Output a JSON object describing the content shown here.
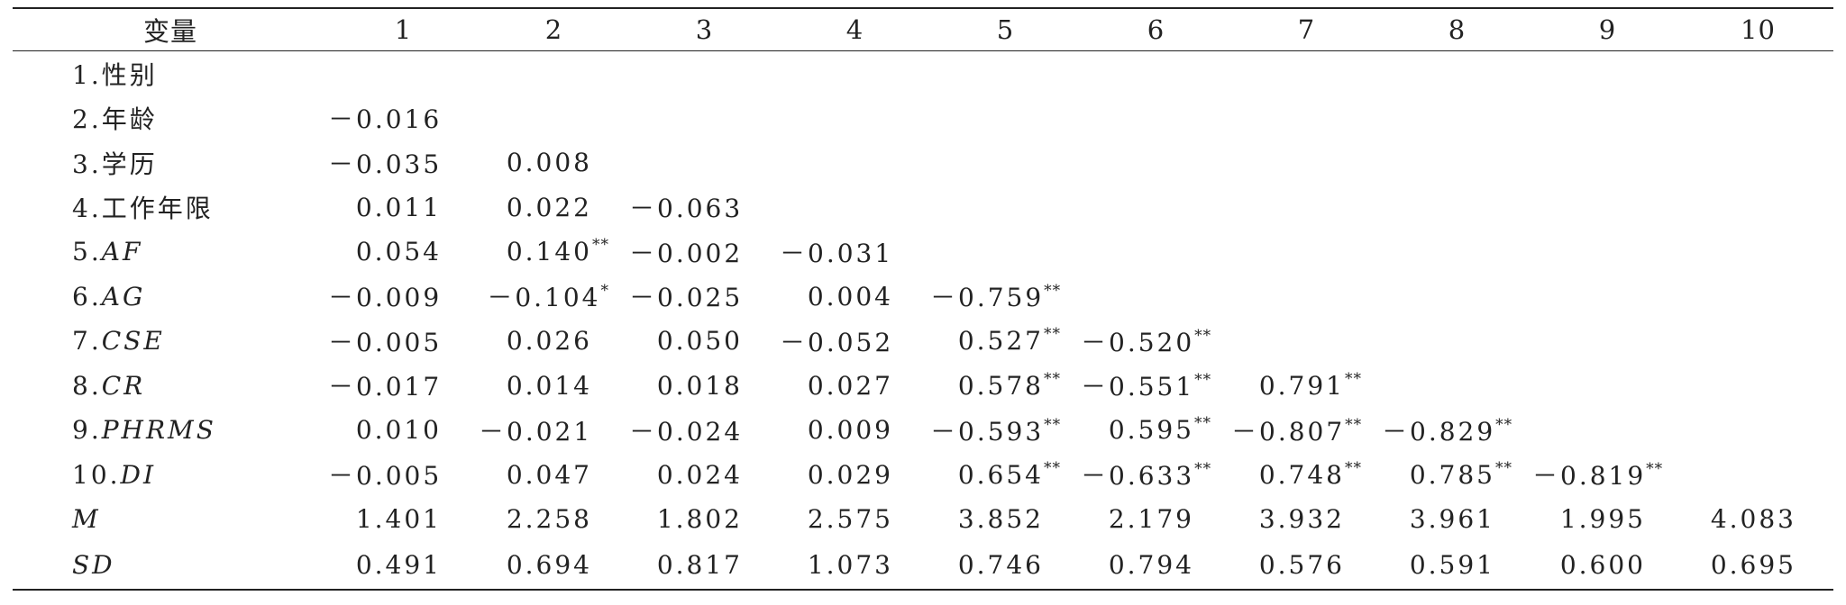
{
  "table": {
    "headers": [
      "变量",
      "1",
      "2",
      "3",
      "4",
      "5",
      "6",
      "7",
      "8",
      "9",
      "10"
    ],
    "rows": [
      {
        "label": "1.性别",
        "italic": false,
        "cells": []
      },
      {
        "label": "2.年龄",
        "italic": false,
        "cells": [
          {
            "v": "－0.016",
            "s": ""
          }
        ]
      },
      {
        "label": "3.学历",
        "italic": false,
        "cells": [
          {
            "v": "－0.035",
            "s": ""
          },
          {
            "v": "0.008",
            "s": ""
          }
        ]
      },
      {
        "label": "4.工作年限",
        "italic": false,
        "cells": [
          {
            "v": "0.011",
            "s": ""
          },
          {
            "v": "0.022",
            "s": ""
          },
          {
            "v": "－0.063",
            "s": ""
          }
        ]
      },
      {
        "label_prefix": "5.",
        "label_var": "AF",
        "cells": [
          {
            "v": "0.054",
            "s": ""
          },
          {
            "v": "0.140",
            "s": "**"
          },
          {
            "v": "－0.002",
            "s": ""
          },
          {
            "v": "－0.031",
            "s": ""
          }
        ]
      },
      {
        "label_prefix": "6.",
        "label_var": "AG",
        "cells": [
          {
            "v": "－0.009",
            "s": ""
          },
          {
            "v": "－0.104",
            "s": "*"
          },
          {
            "v": "－0.025",
            "s": ""
          },
          {
            "v": "0.004",
            "s": ""
          },
          {
            "v": "－0.759",
            "s": "**"
          }
        ]
      },
      {
        "label_prefix": "7.",
        "label_var": "CSE",
        "cells": [
          {
            "v": "－0.005",
            "s": ""
          },
          {
            "v": "0.026",
            "s": ""
          },
          {
            "v": "0.050",
            "s": ""
          },
          {
            "v": "－0.052",
            "s": ""
          },
          {
            "v": "0.527",
            "s": "**"
          },
          {
            "v": "－0.520",
            "s": "**"
          }
        ]
      },
      {
        "label_prefix": "8.",
        "label_var": "CR",
        "cells": [
          {
            "v": "－0.017",
            "s": ""
          },
          {
            "v": "0.014",
            "s": ""
          },
          {
            "v": "0.018",
            "s": ""
          },
          {
            "v": "0.027",
            "s": ""
          },
          {
            "v": "0.578",
            "s": "**"
          },
          {
            "v": "－0.551",
            "s": "**"
          },
          {
            "v": "0.791",
            "s": "**"
          }
        ]
      },
      {
        "label_prefix": "9.",
        "label_var": "PHRMS",
        "cells": [
          {
            "v": "0.010",
            "s": ""
          },
          {
            "v": "－0.021",
            "s": ""
          },
          {
            "v": "－0.024",
            "s": ""
          },
          {
            "v": "0.009",
            "s": ""
          },
          {
            "v": "－0.593",
            "s": "**"
          },
          {
            "v": "0.595",
            "s": "**"
          },
          {
            "v": "－0.807",
            "s": "**"
          },
          {
            "v": "－0.829",
            "s": "**"
          }
        ]
      },
      {
        "label_prefix": "10.",
        "label_var": "DI",
        "cells": [
          {
            "v": "－0.005",
            "s": ""
          },
          {
            "v": "0.047",
            "s": ""
          },
          {
            "v": "0.024",
            "s": ""
          },
          {
            "v": "0.029",
            "s": ""
          },
          {
            "v": "0.654",
            "s": "**"
          },
          {
            "v": "－0.633",
            "s": "**"
          },
          {
            "v": "0.748",
            "s": "**"
          },
          {
            "v": "0.785",
            "s": "**"
          },
          {
            "v": "－0.819",
            "s": "**"
          }
        ]
      },
      {
        "label_var": "M",
        "cells": [
          {
            "v": "1.401",
            "s": ""
          },
          {
            "v": "2.258",
            "s": ""
          },
          {
            "v": "1.802",
            "s": ""
          },
          {
            "v": "2.575",
            "s": ""
          },
          {
            "v": "3.852",
            "s": ""
          },
          {
            "v": "2.179",
            "s": ""
          },
          {
            "v": "3.932",
            "s": ""
          },
          {
            "v": "3.961",
            "s": ""
          },
          {
            "v": "1.995",
            "s": ""
          },
          {
            "v": "4.083",
            "s": ""
          }
        ]
      },
      {
        "label_var": "SD",
        "cells": [
          {
            "v": "0.491",
            "s": ""
          },
          {
            "v": "0.694",
            "s": ""
          },
          {
            "v": "0.817",
            "s": ""
          },
          {
            "v": "1.073",
            "s": ""
          },
          {
            "v": "0.746",
            "s": ""
          },
          {
            "v": "0.794",
            "s": ""
          },
          {
            "v": "0.576",
            "s": ""
          },
          {
            "v": "0.591",
            "s": ""
          },
          {
            "v": "0.600",
            "s": ""
          },
          {
            "v": "0.695",
            "s": ""
          }
        ]
      }
    ]
  }
}
